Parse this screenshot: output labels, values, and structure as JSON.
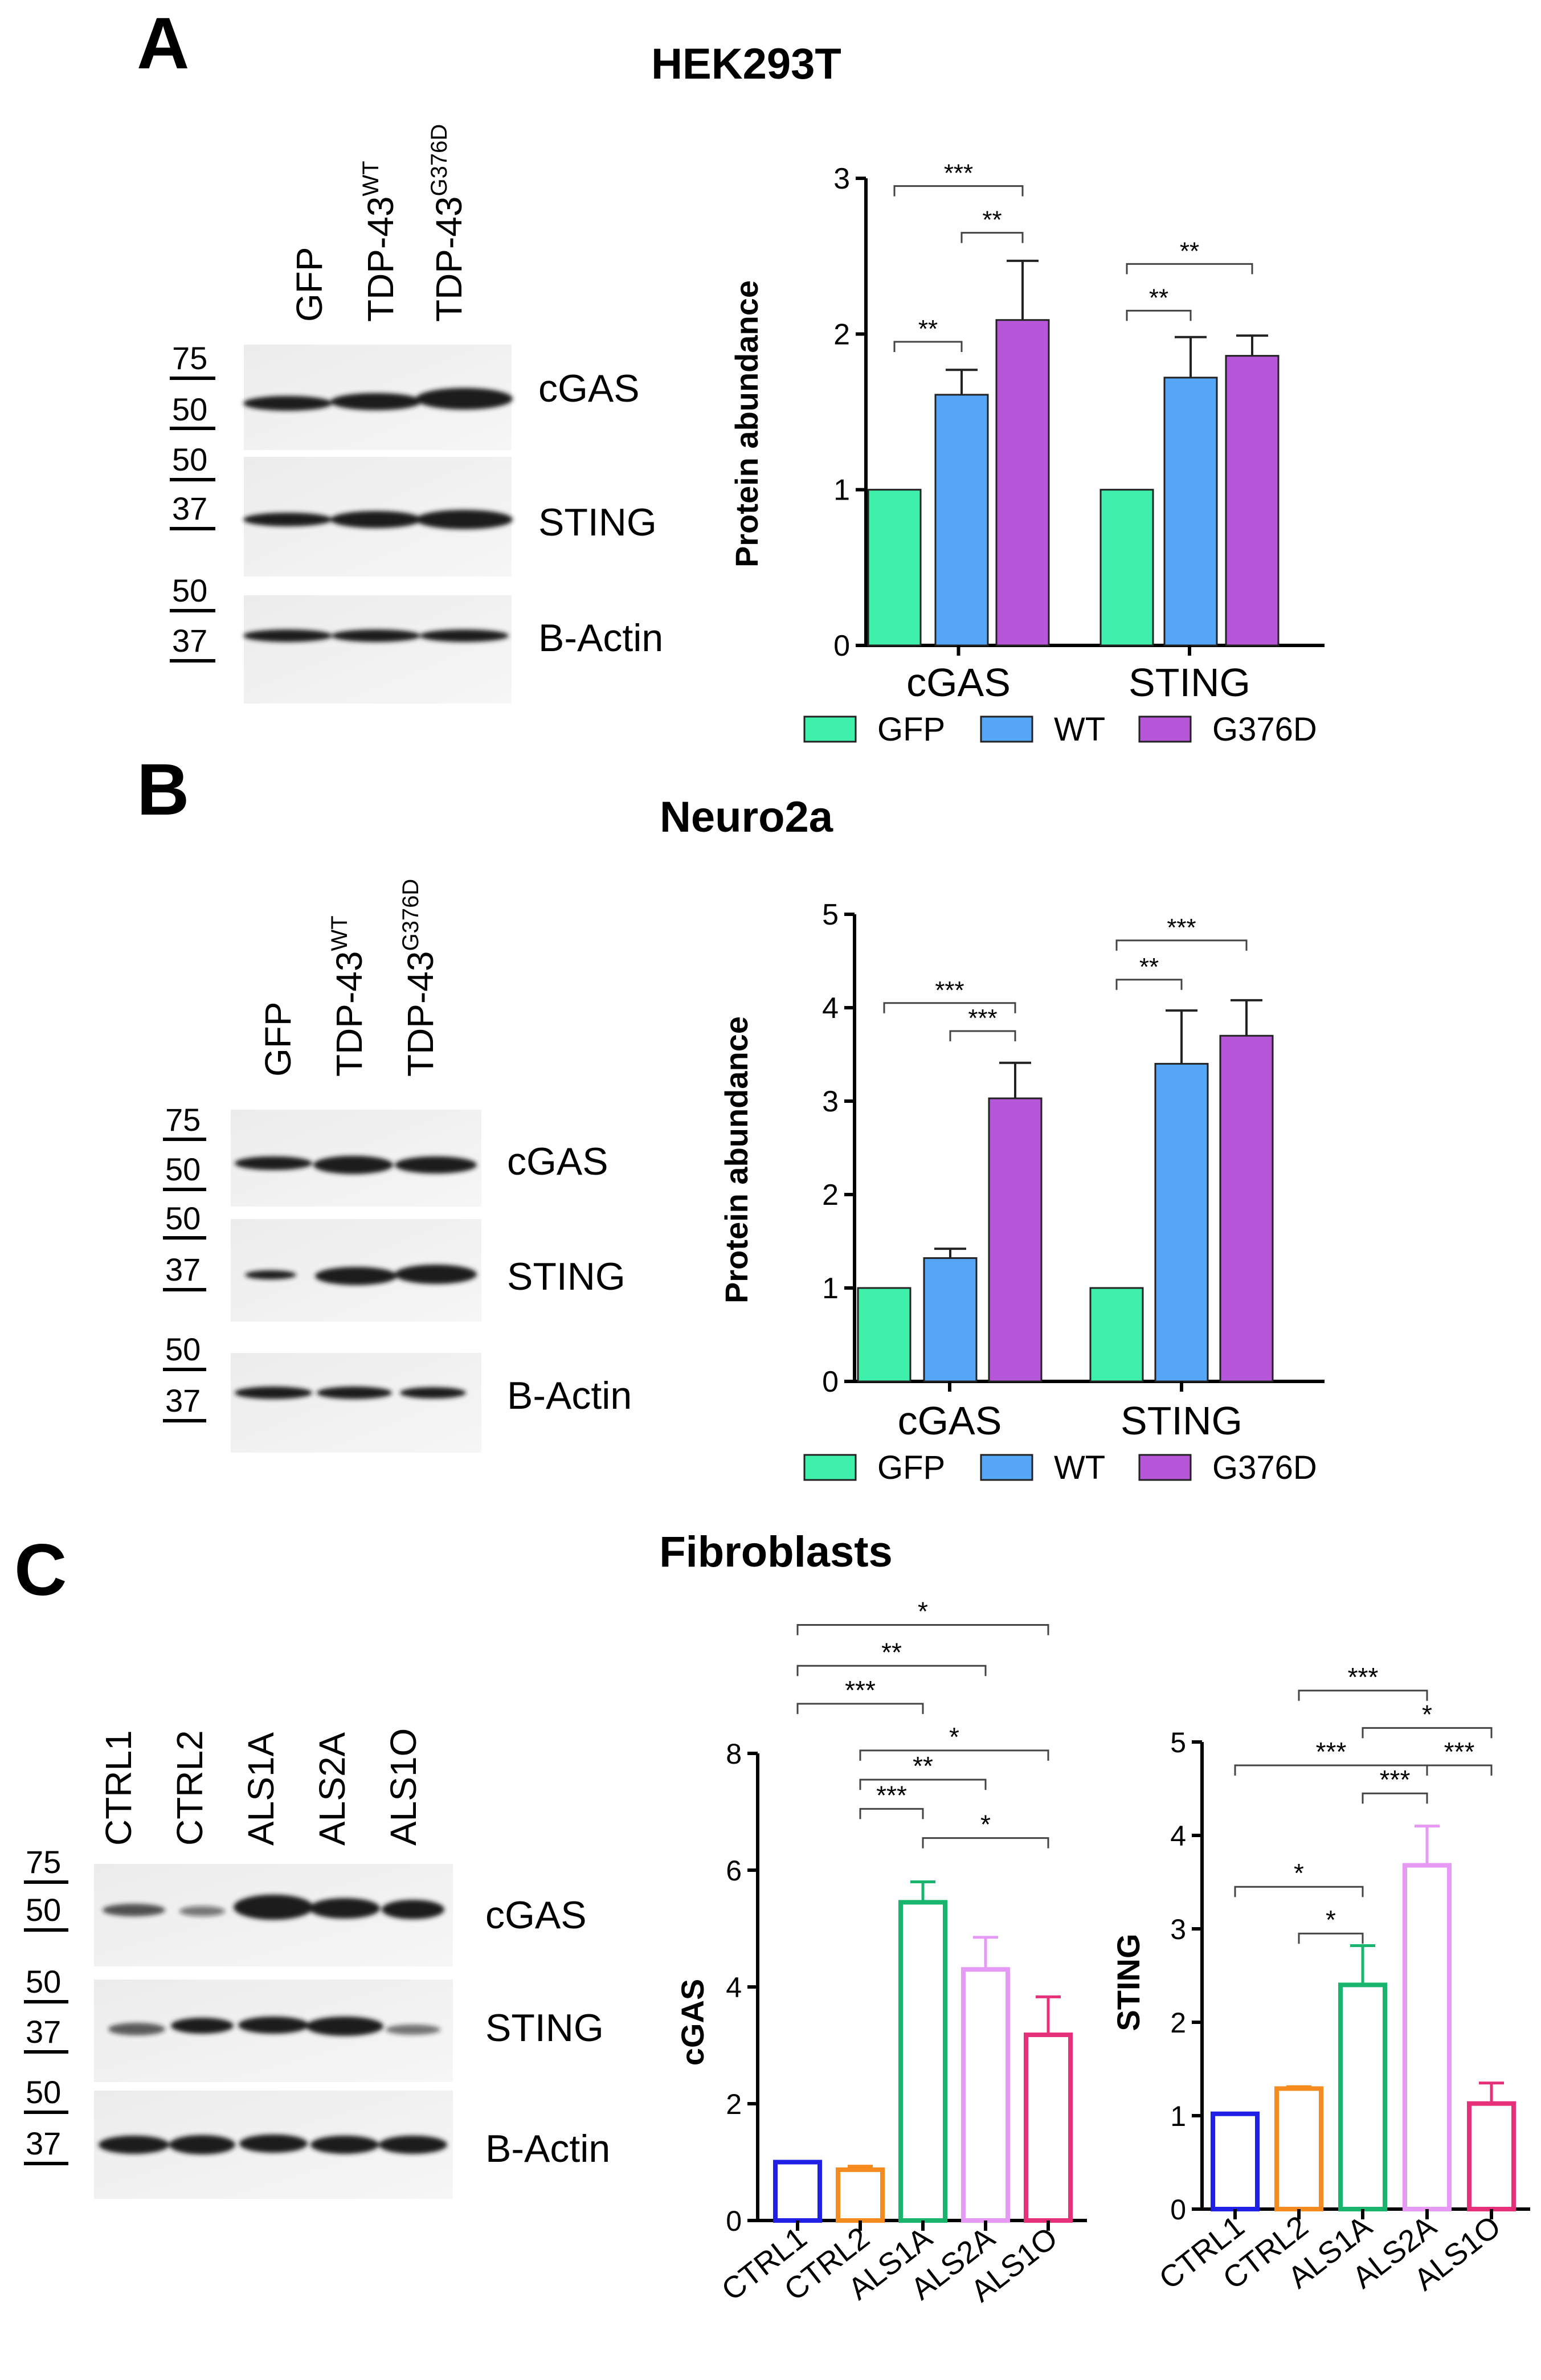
{
  "panels": {
    "A": {
      "letter": "A",
      "title": "HEK293T",
      "lanes": [
        "GFP",
        "TDP-43",
        "TDP-43"
      ],
      "lane_superscripts": [
        "",
        "WT",
        "G376D"
      ],
      "blots": [
        {
          "label": "cGAS",
          "markers": [
            "75",
            "50"
          ]
        },
        {
          "label": "STING",
          "markers": [
            "50",
            "37"
          ]
        },
        {
          "label": "B-Actin",
          "markers": [
            "50",
            "37"
          ]
        }
      ]
    },
    "B": {
      "letter": "B",
      "title": "Neuro2a",
      "lanes": [
        "GFP",
        "TDP-43",
        "TDP-43"
      ],
      "lane_superscripts": [
        "",
        "WT",
        "G376D"
      ],
      "blots": [
        {
          "label": "cGAS",
          "markers": [
            "75",
            "50"
          ]
        },
        {
          "label": "STING",
          "markers": [
            "50",
            "37"
          ]
        },
        {
          "label": "B-Actin",
          "markers": [
            "50",
            "37"
          ]
        }
      ]
    },
    "C": {
      "letter": "C",
      "title": "Fibroblasts",
      "lanes": [
        "CTRL1",
        "CTRL2",
        "ALS1A",
        "ALS2A",
        "ALS1O"
      ],
      "blots": [
        {
          "label": "cGAS",
          "markers": [
            "75",
            "50"
          ]
        },
        {
          "label": "STING",
          "markers": [
            "50",
            "37"
          ]
        },
        {
          "label": "B-Actin",
          "markers": [
            "50",
            "37"
          ]
        }
      ]
    }
  },
  "chart_data": [
    {
      "id": "A",
      "type": "bar",
      "title": "HEK293T",
      "ylabel": "Protein abundance",
      "xlabel": "",
      "ylim": [
        0,
        3
      ],
      "yticks": [
        "0",
        "1",
        "2",
        "3"
      ],
      "categories": [
        "cGAS",
        "STING"
      ],
      "series": [
        {
          "name": "GFP",
          "color": "#3ff0aa",
          "values": [
            1.0,
            1.0
          ],
          "errors": [
            0,
            0
          ]
        },
        {
          "name": "WT",
          "color": "#55a6f6",
          "values": [
            1.61,
            1.72
          ],
          "errors": [
            0.16,
            0.26
          ]
        },
        {
          "name": "G376D",
          "color": "#b657d9",
          "values": [
            2.09,
            1.86
          ],
          "errors": [
            0.38,
            0.13
          ]
        }
      ],
      "legend": "bottom",
      "significance": [
        {
          "cat": 0,
          "from": 0,
          "to": 1,
          "label": "**",
          "level": 1.95
        },
        {
          "cat": 0,
          "from": 1,
          "to": 2,
          "label": "**",
          "level": 2.65
        },
        {
          "cat": 0,
          "from": 0,
          "to": 2,
          "label": "***",
          "level": 2.95
        },
        {
          "cat": 1,
          "from": 0,
          "to": 1,
          "label": "**",
          "level": 2.15
        },
        {
          "cat": 1,
          "from": 0,
          "to": 2,
          "label": "**",
          "level": 2.45
        }
      ]
    },
    {
      "id": "B",
      "type": "bar",
      "title": "Neuro2a",
      "ylabel": "Protein abundance",
      "xlabel": "",
      "ylim": [
        0,
        5
      ],
      "yticks": [
        "0",
        "1",
        "2",
        "3",
        "4",
        "5"
      ],
      "categories": [
        "cGAS",
        "STING"
      ],
      "series": [
        {
          "name": "GFP",
          "color": "#3ff0aa",
          "values": [
            1.0,
            1.0
          ],
          "errors": [
            0,
            0
          ]
        },
        {
          "name": "WT",
          "color": "#55a6f6",
          "values": [
            1.32,
            3.4
          ],
          "errors": [
            0.1,
            0.57
          ]
        },
        {
          "name": "G376D",
          "color": "#b657d9",
          "values": [
            3.03,
            3.7
          ],
          "errors": [
            0.38,
            0.38
          ]
        }
      ],
      "legend": "bottom",
      "significance": [
        {
          "cat": 0,
          "from": 1,
          "to": 2,
          "label": "***",
          "level": 3.75
        },
        {
          "cat": 0,
          "from": 0,
          "to": 2,
          "label": "***",
          "level": 4.05
        },
        {
          "cat": 1,
          "from": 0,
          "to": 1,
          "label": "**",
          "level": 4.3
        },
        {
          "cat": 1,
          "from": 0,
          "to": 2,
          "label": "***",
          "level": 4.72
        }
      ]
    },
    {
      "id": "C1",
      "type": "bar",
      "title": "",
      "ylabel": "cGAS",
      "xlabel": "",
      "ylim": [
        0,
        8
      ],
      "yticks": [
        "0",
        "2",
        "4",
        "6",
        "8"
      ],
      "categories": [
        "CTRL1",
        "CTRL2",
        "ALS1A",
        "ALS2A",
        "ALS1O"
      ],
      "colors": [
        "#1f1fe6",
        "#f58a1f",
        "#19b46e",
        "#e69af5",
        "#e6317a"
      ],
      "values": [
        1.0,
        0.87,
        5.45,
        4.3,
        3.18
      ],
      "errors": [
        0,
        0.06,
        0.35,
        0.55,
        0.65
      ],
      "significance": [
        {
          "from": 2,
          "to": 4,
          "label": "*",
          "level": 6.55
        },
        {
          "from": 1,
          "to": 2,
          "label": "***",
          "level": 7.05
        },
        {
          "from": 1,
          "to": 3,
          "label": "**",
          "level": 7.55
        },
        {
          "from": 1,
          "to": 4,
          "label": "*",
          "level": 8.05
        },
        {
          "from": 0,
          "to": 2,
          "label": "***",
          "level": 8.85
        },
        {
          "from": 0,
          "to": 3,
          "label": "**",
          "level": 9.5
        },
        {
          "from": 0,
          "to": 4,
          "label": "*",
          "level": 10.2
        }
      ]
    },
    {
      "id": "C2",
      "type": "bar",
      "title": "",
      "ylabel": "STING",
      "xlabel": "",
      "ylim": [
        0,
        5
      ],
      "yticks": [
        "0",
        "1",
        "2",
        "3",
        "4",
        "5"
      ],
      "categories": [
        "CTRL1",
        "CTRL2",
        "ALS1A",
        "ALS2A",
        "ALS1O"
      ],
      "colors": [
        "#1f1fe6",
        "#f58a1f",
        "#19b46e",
        "#e69af5",
        "#e6317a"
      ],
      "values": [
        1.02,
        1.29,
        2.4,
        3.68,
        1.13
      ],
      "errors": [
        0,
        0.02,
        0.42,
        0.42,
        0.22
      ],
      "significance": [
        {
          "from": 1,
          "to": 2,
          "label": "*",
          "level": 2.95
        },
        {
          "from": 0,
          "to": 2,
          "label": "*",
          "level": 3.45
        },
        {
          "from": 2,
          "to": 3,
          "label": "***",
          "level": 4.45
        },
        {
          "from": 3,
          "to": 4,
          "label": "***",
          "level": 4.75
        },
        {
          "from": 0,
          "to": 3,
          "label": "***",
          "level": 4.75
        },
        {
          "from": 2,
          "to": 4,
          "label": "*",
          "level": 5.15
        },
        {
          "from": 1,
          "to": 3,
          "label": "***",
          "level": 5.55
        }
      ]
    }
  ]
}
